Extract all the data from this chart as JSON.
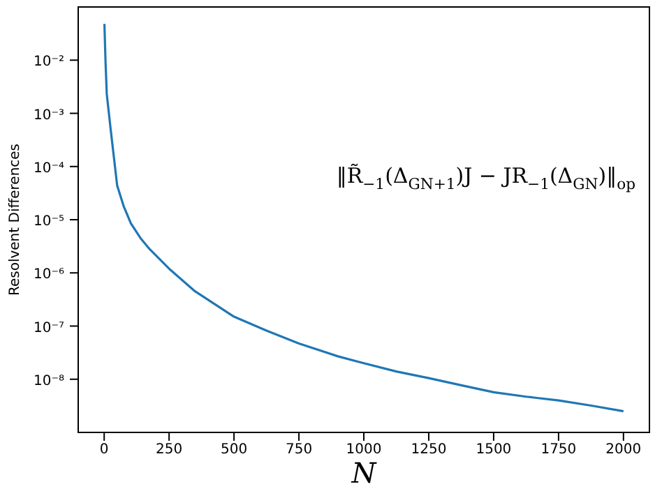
{
  "chart_data": {
    "type": "line",
    "xlabel": "N",
    "ylabel": "Resolvent Differences",
    "annotations": [
      "‖R̃$_{−1}$(Δ$_{GN+1}$)J − JR$_{−1}$(Δ$_{GN}$)‖$_{op}$"
    ],
    "x": [
      1,
      5,
      10,
      25,
      50,
      75,
      103,
      140,
      175,
      250,
      350,
      500,
      625,
      750,
      900,
      1000,
      1125,
      1250,
      1375,
      1500,
      1625,
      1750,
      1875,
      2000
    ],
    "series": [
      {
        "color": "#1f77b4",
        "values": [
          0.048,
          0.01,
          0.0023,
          0.0005,
          4.4e-05,
          1.8e-05,
          8.5e-06,
          4.5e-06,
          2.8e-06,
          1.2e-06,
          4.5e-07,
          1.5e-07,
          8.2e-08,
          4.7e-08,
          2.7e-08,
          2e-08,
          1.4e-08,
          1.05e-08,
          7.7e-09,
          5.7e-09,
          4.7e-09,
          4e-09,
          3.2e-09,
          2.5e-09
        ]
      }
    ],
    "log": "y",
    "xlim": [
      -100,
      2100
    ],
    "xticks": [
      0,
      250,
      500,
      750,
      1000,
      1250,
      1500,
      1750,
      2000
    ],
    "ylim": [
      1e-09,
      0.1
    ],
    "yticks": [
      {
        "value": 1e-08,
        "label": "10⁻⁸"
      },
      {
        "value": 1e-07,
        "label": "10⁻⁷"
      },
      {
        "value": 1e-06,
        "label": "10⁻⁶"
      },
      {
        "value": 1e-05,
        "label": "10⁻⁵"
      },
      {
        "value": 0.0001,
        "label": "10⁻⁴"
      },
      {
        "value": 0.001,
        "label": "10⁻³"
      },
      {
        "value": 0.01,
        "label": "10⁻²"
      }
    ],
    "grid": false,
    "legend": false,
    "marker": "none",
    "line_style": "solid"
  }
}
